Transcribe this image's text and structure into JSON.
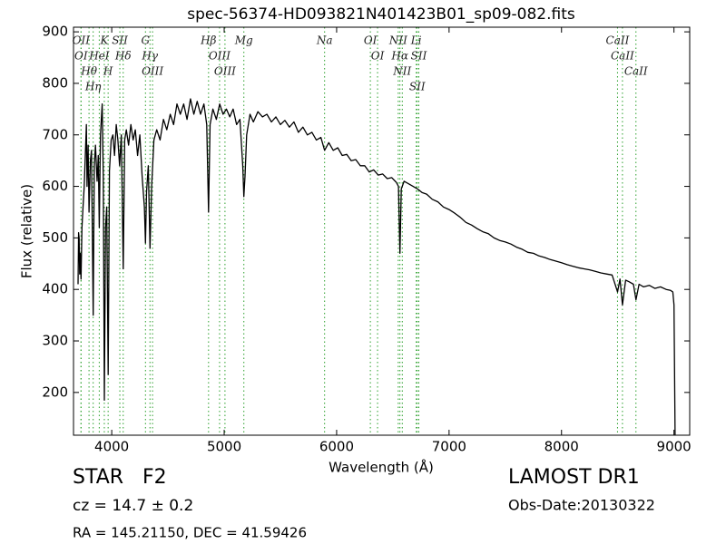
{
  "chart_data": {
    "type": "line",
    "title": "spec-56374-HD093821N401423B01_sp09-082.fits",
    "x_label": "Wavelength (Å)",
    "y_label": "Flux (relative)",
    "xlim": [
      3660,
      9140
    ],
    "ylim": [
      117,
      909
    ],
    "xticks": [
      4000,
      5000,
      6000,
      7000,
      8000,
      9000
    ],
    "yticks": [
      200,
      300,
      400,
      500,
      600,
      700,
      800,
      900
    ],
    "x": [
      3700,
      3705,
      3710,
      3715,
      3720,
      3727,
      3735,
      3745,
      3755,
      3765,
      3775,
      3780,
      3790,
      3798,
      3810,
      3820,
      3835,
      3845,
      3855,
      3870,
      3880,
      3889,
      3900,
      3915,
      3925,
      3934,
      3945,
      3955,
      3968,
      3980,
      3995,
      4010,
      4025,
      4040,
      4055,
      4070,
      4085,
      4102,
      4115,
      4130,
      4150,
      4170,
      4190,
      4210,
      4230,
      4250,
      4270,
      4290,
      4300,
      4310,
      4325,
      4340,
      4355,
      4375,
      4400,
      4430,
      4460,
      4490,
      4520,
      4550,
      4580,
      4610,
      4640,
      4670,
      4700,
      4730,
      4760,
      4790,
      4820,
      4845,
      4861,
      4875,
      4900,
      4930,
      4960,
      4990,
      5020,
      5050,
      5080,
      5110,
      5140,
      5165,
      5175,
      5185,
      5200,
      5230,
      5260,
      5300,
      5340,
      5380,
      5420,
      5460,
      5500,
      5540,
      5580,
      5620,
      5660,
      5700,
      5740,
      5780,
      5820,
      5860,
      5893,
      5930,
      5970,
      6010,
      6050,
      6090,
      6130,
      6170,
      6210,
      6250,
      6290,
      6330,
      6370,
      6410,
      6450,
      6490,
      6530,
      6550,
      6563,
      6575,
      6600,
      6640,
      6680,
      6720,
      6760,
      6800,
      6850,
      6900,
      6950,
      7000,
      7050,
      7100,
      7150,
      7200,
      7250,
      7300,
      7350,
      7400,
      7450,
      7500,
      7550,
      7600,
      7650,
      7700,
      7750,
      7800,
      7850,
      7900,
      7950,
      8000,
      8050,
      8100,
      8150,
      8200,
      8250,
      8300,
      8350,
      8400,
      8450,
      8498,
      8520,
      8542,
      8570,
      8600,
      8640,
      8662,
      8690,
      8730,
      8780,
      8830,
      8880,
      8930,
      8970,
      8990,
      9000,
      9010
    ],
    "series": [
      {
        "color": "#000000",
        "values": [
          410,
          510,
          500,
          430,
          470,
          420,
          520,
          560,
          600,
          660,
          720,
          600,
          680,
          550,
          650,
          670,
          350,
          640,
          680,
          610,
          660,
          520,
          700,
          760,
          620,
          185,
          520,
          560,
          235,
          630,
          690,
          700,
          660,
          720,
          690,
          640,
          700,
          440,
          690,
          710,
          680,
          720,
          690,
          710,
          660,
          700,
          620,
          560,
          490,
          590,
          640,
          480,
          600,
          690,
          710,
          690,
          730,
          710,
          740,
          720,
          760,
          740,
          760,
          730,
          770,
          740,
          765,
          740,
          760,
          720,
          550,
          720,
          750,
          730,
          760,
          740,
          750,
          735,
          750,
          720,
          730,
          640,
          580,
          620,
          700,
          740,
          725,
          745,
          735,
          740,
          725,
          735,
          720,
          728,
          715,
          725,
          705,
          715,
          700,
          705,
          690,
          695,
          670,
          685,
          670,
          675,
          660,
          662,
          650,
          652,
          640,
          640,
          628,
          632,
          622,
          624,
          615,
          617,
          608,
          600,
          470,
          595,
          610,
          605,
          600,
          595,
          588,
          585,
          575,
          570,
          560,
          555,
          548,
          540,
          530,
          525,
          518,
          512,
          508,
          500,
          495,
          492,
          488,
          482,
          478,
          472,
          470,
          465,
          462,
          458,
          455,
          452,
          448,
          445,
          442,
          440,
          438,
          435,
          432,
          430,
          428,
          395,
          420,
          370,
          418,
          415,
          410,
          380,
          410,
          405,
          408,
          402,
          405,
          400,
          398,
          395,
          370,
          117
        ]
      }
    ],
    "line_color": "#2ca02c",
    "lines": [
      {
        "label": "OII",
        "x": 3727
      },
      {
        "label": "OI",
        "x": 3727
      },
      {
        "label": "Hθ",
        "x": 3798
      },
      {
        "label": "Hη",
        "x": 3835
      },
      {
        "label": "HeI",
        "x": 3889
      },
      {
        "label": "K",
        "x": 3934
      },
      {
        "label": "H",
        "x": 3968
      },
      {
        "label": "SII",
        "x": 4072
      },
      {
        "label": "Hδ",
        "x": 4102
      },
      {
        "label": "G",
        "x": 4300
      },
      {
        "label": "Hγ",
        "x": 4340
      },
      {
        "label": "OIII",
        "x": 4363
      },
      {
        "label": "Hβ",
        "x": 4861
      },
      {
        "label": "OIII",
        "x": 4959
      },
      {
        "label": "OIII",
        "x": 5007
      },
      {
        "label": "Mg",
        "x": 5175
      },
      {
        "label": "Na",
        "x": 5893
      },
      {
        "label": "OI",
        "x": 6300
      },
      {
        "label": "OI",
        "x": 6364
      },
      {
        "label": "NII",
        "x": 6548
      },
      {
        "label": "Hα",
        "x": 6563
      },
      {
        "label": "NII",
        "x": 6584
      },
      {
        "label": "Li",
        "x": 6708
      },
      {
        "label": "SII",
        "x": 6717
      },
      {
        "label": "SII",
        "x": 6731
      },
      {
        "label": "CaII",
        "x": 8498
      },
      {
        "label": "CaII",
        "x": 8542
      },
      {
        "label": "CaII",
        "x": 8662
      }
    ]
  },
  "footer": {
    "object": "STAR   F2",
    "survey": "LAMOST DR1",
    "redshift": "cz = 14.7 ± 0.2",
    "date": "Obs-Date:20130322",
    "coords": "RA = 145.21150, DEC = 41.59426"
  }
}
